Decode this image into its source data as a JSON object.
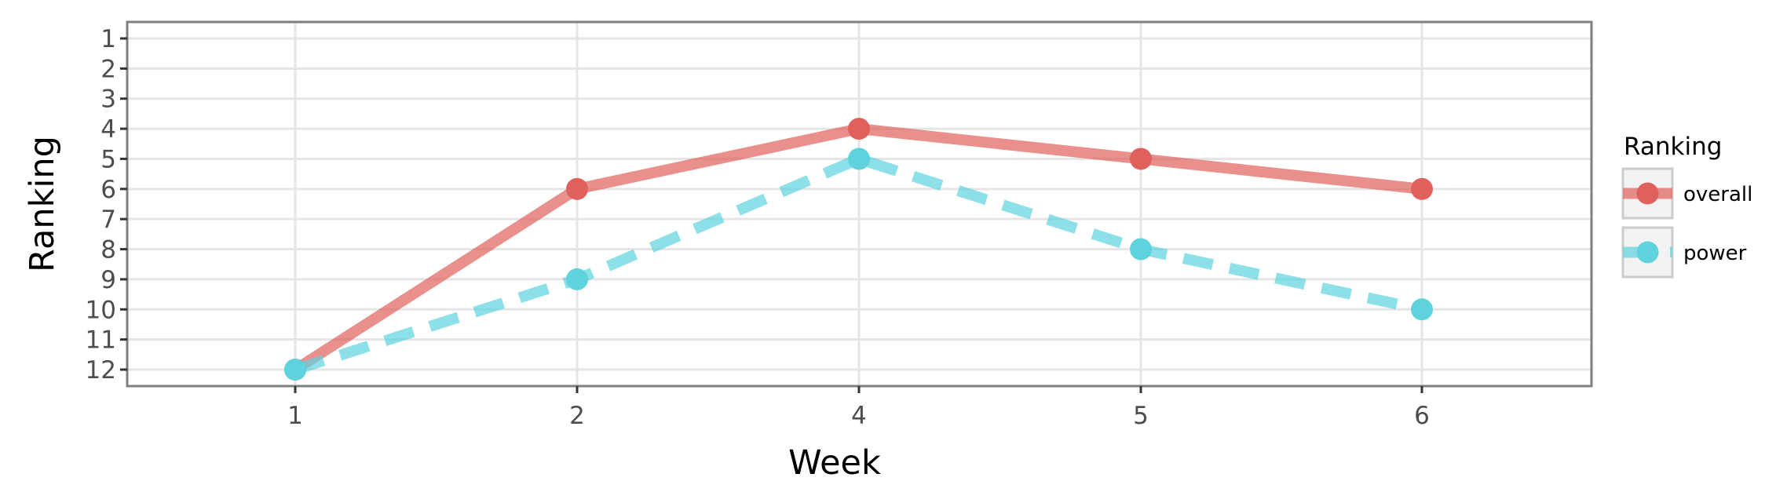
{
  "chart_data": {
    "type": "line",
    "title": "",
    "xlabel": "Week",
    "ylabel": "Ranking",
    "categories": [
      "1",
      "2",
      "4",
      "5",
      "6"
    ],
    "y_ticks": [
      "1",
      "2",
      "3",
      "4",
      "5",
      "6",
      "7",
      "8",
      "9",
      "10",
      "11",
      "12"
    ],
    "ylim": [
      1,
      12
    ],
    "y_reversed": true,
    "grid": true,
    "legend_title": "Ranking",
    "legend_position": "right",
    "series": [
      {
        "name": "overall",
        "values": [
          12,
          6,
          4,
          5,
          6
        ],
        "color": "#E0605B",
        "line_style": "solid"
      },
      {
        "name": "power",
        "values": [
          12,
          9,
          5,
          8,
          10
        ],
        "color": "#5ED3DE",
        "line_style": "dashed"
      }
    ]
  }
}
